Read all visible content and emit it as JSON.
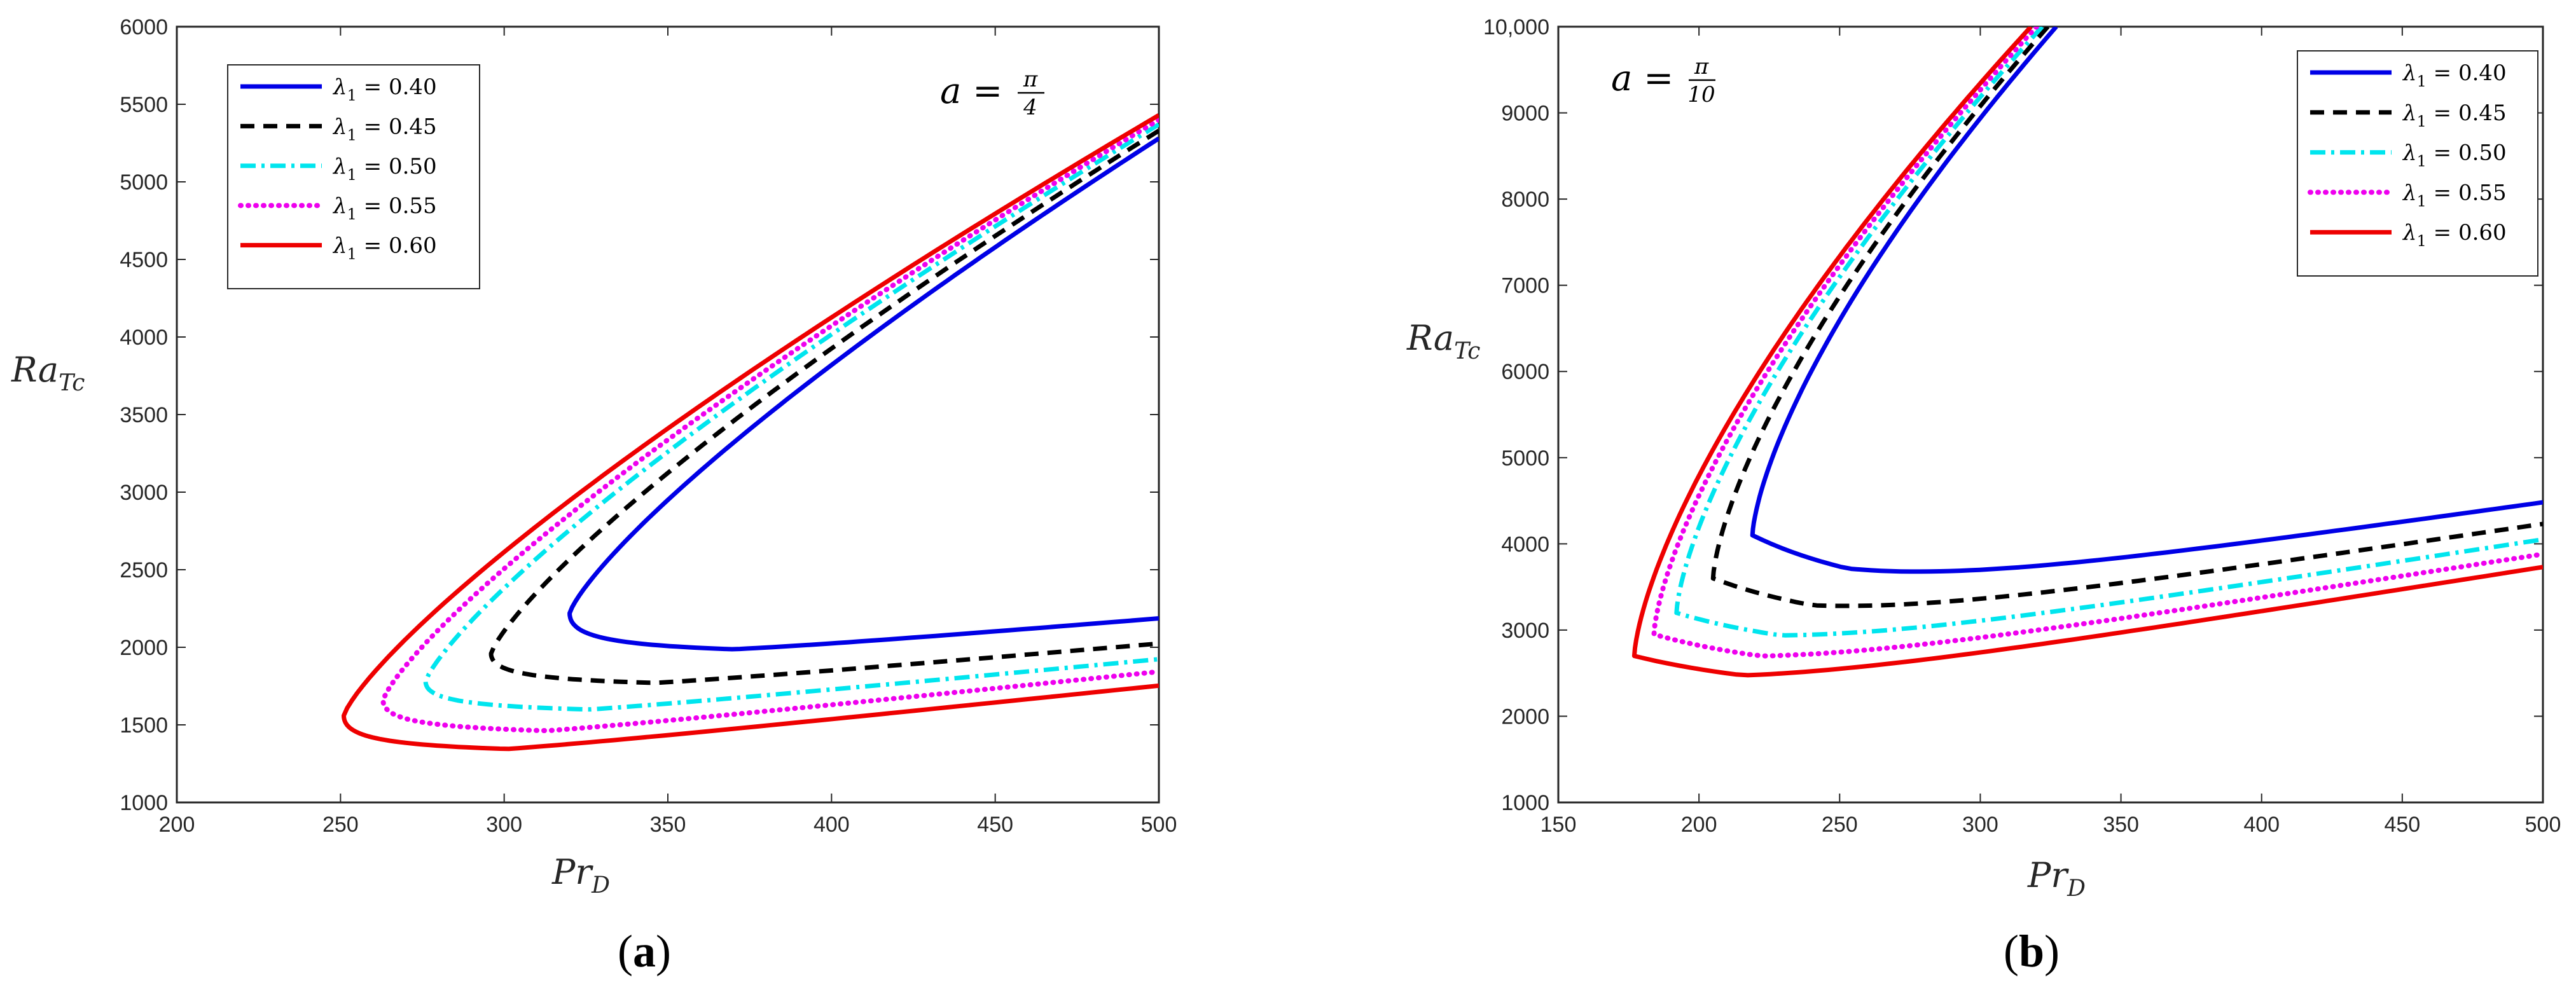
{
  "chart_data": [
    {
      "type": "line",
      "caption_open": "(",
      "caption_letter": "a",
      "caption_close": ")",
      "annotation": {
        "lhs": "a",
        "eq": "=",
        "num": "π",
        "den": "4"
      },
      "xlabel": {
        "main": "Pr",
        "sub": "D"
      },
      "ylabel": {
        "main": "Ra",
        "sub": "Tc"
      },
      "xlim": [
        200,
        500
      ],
      "ylim": [
        1000,
        6000
      ],
      "xticks": [
        "200",
        "250",
        "300",
        "350",
        "400",
        "450",
        "500"
      ],
      "yticks": [
        "1000",
        "1500",
        "2000",
        "2500",
        "3000",
        "3500",
        "4000",
        "4500",
        "5000",
        "5500",
        "6000"
      ],
      "legend_position": "top-left",
      "series": [
        {
          "name": "λ1 = 0.40",
          "sym": "λ",
          "sub": "1",
          "eq": "= 0.40",
          "color": "#0000e6",
          "dash": "",
          "xmin": 320,
          "ymin": 2220,
          "ulow": 1950,
          "a1": 1.5,
          "a2": 0.8,
          "xend": 500,
          "yend_lower": 2180
        },
        {
          "name": "λ1 = 0.45",
          "sym": "λ",
          "sub": "1",
          "eq": "= 0.45",
          "color": "#000000",
          "dash": "22,14",
          "xmin": 296,
          "ymin": 1960,
          "ulow": 1740,
          "a1": 1.5,
          "a2": 0.8,
          "xend": 500,
          "yend_lower": 2020
        },
        {
          "name": "λ1 = 0.50",
          "sym": "λ",
          "sub": "1",
          "eq": "= 0.50",
          "color": "#00e5ee",
          "dash": "24,9,5,9",
          "xmin": 276,
          "ymin": 1780,
          "ulow": 1570,
          "a1": 1.5,
          "a2": 0.8,
          "xend": 500,
          "yend_lower": 1920
        },
        {
          "name": "λ1 = 0.55",
          "sym": "λ",
          "sub": "1",
          "eq": "= 0.55",
          "color": "#ee00ee",
          "dash": "4,8",
          "xmin": 263,
          "ymin": 1660,
          "ulow": 1430,
          "a1": 1.5,
          "a2": 0.8,
          "xend": 500,
          "yend_lower": 1840
        },
        {
          "name": "λ1 = 0.60",
          "sym": "λ",
          "sub": "1",
          "eq": "= 0.60",
          "color": "#ee0000",
          "dash": "",
          "xmin": 251,
          "ymin": 1560,
          "ulow": 1310,
          "a1": 1.5,
          "a2": 0.8,
          "xend": 500,
          "yend_lower": 1750
        }
      ],
      "upper_end_y": [
        5280,
        5330,
        5370,
        5400,
        5430
      ]
    },
    {
      "type": "line",
      "caption_open": "(",
      "caption_letter": "b",
      "caption_close": ")",
      "annotation": {
        "lhs": "a",
        "eq": "=",
        "num": "π",
        "den": "10"
      },
      "xlabel": {
        "main": "Pr",
        "sub": "D"
      },
      "ylabel": {
        "main": "Ra",
        "sub": "Tc"
      },
      "xlim": [
        150,
        500
      ],
      "ylim": [
        1000,
        10000
      ],
      "xticks": [
        "150",
        "200",
        "250",
        "300",
        "350",
        "400",
        "450",
        "500"
      ],
      "yticks": [
        "1000",
        "2000",
        "3000",
        "4000",
        "5000",
        "6000",
        "7000",
        "8000",
        "9000",
        "10,000"
      ],
      "legend_position": "top-right",
      "series": [
        {
          "name": "λ1 = 0.40",
          "sym": "λ",
          "sub": "1",
          "eq": "= 0.40",
          "color": "#0000e6",
          "dash": "",
          "xmin": 219,
          "ymin": 4100,
          "ulow": 3350,
          "top_x": 327
        },
        {
          "name": "λ1 = 0.45",
          "sym": "λ",
          "sub": "1",
          "eq": "= 0.45",
          "color": "#000000",
          "dash": "22,14",
          "xmin": 205,
          "ymin": 3600,
          "ulow": 2990,
          "top_x": 324
        },
        {
          "name": "λ1 = 0.50",
          "sym": "λ",
          "sub": "1",
          "eq": "= 0.50",
          "color": "#00e5ee",
          "dash": "24,9,5,9",
          "xmin": 192,
          "ymin": 3200,
          "ulow": 2690,
          "top_x": 322
        },
        {
          "name": "λ1 = 0.55",
          "sym": "λ",
          "sub": "1",
          "eq": "= 0.55",
          "color": "#ee00ee",
          "dash": "4,8",
          "xmin": 184,
          "ymin": 2950,
          "ulow": 2460,
          "top_x": 320
        },
        {
          "name": "λ1 = 0.60",
          "sym": "λ",
          "sub": "1",
          "eq": "= 0.60",
          "color": "#ee0000",
          "dash": "",
          "xmin": 177,
          "ymin": 2700,
          "ulow": 2260,
          "top_x": 318
        }
      ],
      "lower_end_y": [
        4480,
        4230,
        4050,
        3880,
        3730
      ]
    }
  ]
}
